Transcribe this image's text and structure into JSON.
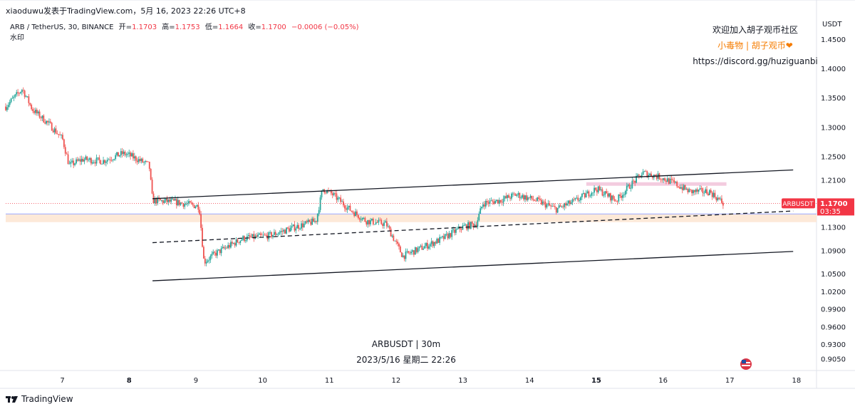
{
  "header": {
    "publisher_line": "xiaoduwu发表于TradingView.com，5月 16, 2023 22:26 UTC+8",
    "symbol_desc": "ARB / TetherUS, 30, BINANCE",
    "ohlc": {
      "open_label": "开=",
      "open": "1.1703",
      "high_label": "高=",
      "high": "1.1753",
      "low_label": "低=",
      "low": "1.1664",
      "close_label": "收=",
      "close": "1.1700",
      "change": "−0.0006 (−0.05%)"
    },
    "watermark_label": "水印"
  },
  "notes": {
    "line1": "欢迎加入胡子观币社区",
    "line2": "小毒物 | 胡子观币❤",
    "line3": "https://discord.gg/huziguanbi"
  },
  "center_watermark": {
    "line1": "ARBUSDT | 30m",
    "line2": "2023/5/16 星期二 22:26"
  },
  "footer": {
    "brand": "TradingView"
  },
  "colors": {
    "up": "#26a69a",
    "down": "#ef5350",
    "channel": "#131722",
    "price_badge": "#f23645",
    "zone": "#fde7d4",
    "zone_line": "#9aa7ff",
    "resistance_bar": "#f2c6dc",
    "grid": "#f0f3fa"
  },
  "chart_data": {
    "type": "candlestick",
    "symbol": "ARBUSDT",
    "interval": "30m",
    "currency_label": "USDT",
    "ylim": [
      0.885,
      1.49
    ],
    "xlim": [
      6.15,
      18.3
    ],
    "y_ticks": [
      "1.4500",
      "1.4000",
      "1.3500",
      "1.3000",
      "1.2500",
      "1.2100",
      "1.1700",
      "1.1300",
      "1.0900",
      "1.0500",
      "1.0200",
      "0.9900",
      "0.9600",
      "0.9300",
      "0.9050"
    ],
    "y_tick_values": [
      1.45,
      1.4,
      1.35,
      1.3,
      1.25,
      1.21,
      1.17,
      1.13,
      1.09,
      1.05,
      1.02,
      0.99,
      0.96,
      0.93,
      0.905
    ],
    "x_ticks": [
      {
        "label": "7",
        "x": 7,
        "bold": false
      },
      {
        "label": "8",
        "x": 8,
        "bold": true
      },
      {
        "label": "9",
        "x": 9,
        "bold": false
      },
      {
        "label": "10",
        "x": 10,
        "bold": false
      },
      {
        "label": "11",
        "x": 11,
        "bold": false
      },
      {
        "label": "12",
        "x": 12,
        "bold": false
      },
      {
        "label": "13",
        "x": 13,
        "bold": false
      },
      {
        "label": "14",
        "x": 14,
        "bold": false
      },
      {
        "label": "15",
        "x": 15,
        "bold": true
      },
      {
        "label": "16",
        "x": 16,
        "bold": false
      },
      {
        "label": "17",
        "x": 17,
        "bold": false
      },
      {
        "label": "18",
        "x": 18,
        "bold": false
      }
    ],
    "price_line": {
      "value": 1.17,
      "label": "ARBUSDT",
      "price": "1.1700",
      "countdown": "03:35"
    },
    "price_path": [
      [
        6.15,
        1.335
      ],
      [
        6.4,
        1.365
      ],
      [
        6.55,
        1.33
      ],
      [
        6.8,
        1.305
      ],
      [
        7.0,
        1.28
      ],
      [
        7.1,
        1.235
      ],
      [
        7.3,
        1.245
      ],
      [
        7.6,
        1.242
      ],
      [
        7.9,
        1.255
      ],
      [
        8.0,
        1.252
      ],
      [
        8.3,
        1.235
      ],
      [
        8.35,
        1.175
      ],
      [
        8.7,
        1.172
      ],
      [
        9.05,
        1.165
      ],
      [
        9.12,
        1.07
      ],
      [
        9.3,
        1.085
      ],
      [
        9.7,
        1.11
      ],
      [
        10.1,
        1.115
      ],
      [
        10.5,
        1.13
      ],
      [
        10.8,
        1.14
      ],
      [
        10.9,
        1.195
      ],
      [
        11.05,
        1.185
      ],
      [
        11.3,
        1.16
      ],
      [
        11.55,
        1.14
      ],
      [
        11.85,
        1.135
      ],
      [
        12.1,
        1.08
      ],
      [
        12.4,
        1.095
      ],
      [
        12.7,
        1.11
      ],
      [
        13.0,
        1.13
      ],
      [
        13.2,
        1.135
      ],
      [
        13.3,
        1.17
      ],
      [
        13.55,
        1.175
      ],
      [
        13.8,
        1.185
      ],
      [
        14.1,
        1.175
      ],
      [
        14.4,
        1.16
      ],
      [
        14.7,
        1.175
      ],
      [
        15.0,
        1.195
      ],
      [
        15.3,
        1.175
      ],
      [
        15.5,
        1.2
      ],
      [
        15.7,
        1.222
      ],
      [
        15.95,
        1.215
      ],
      [
        16.15,
        1.205
      ],
      [
        16.4,
        1.19
      ],
      [
        16.7,
        1.19
      ],
      [
        16.9,
        1.17
      ]
    ],
    "lines": [
      {
        "name": "channel-upper",
        "style": "solid",
        "points": [
          [
            8.35,
            1.178
          ],
          [
            17.95,
            1.227
          ]
        ]
      },
      {
        "name": "channel-lower",
        "style": "solid",
        "points": [
          [
            8.35,
            1.038
          ],
          [
            17.95,
            1.088
          ]
        ]
      },
      {
        "name": "channel-mid",
        "style": "dashed",
        "points": [
          [
            8.35,
            1.103
          ],
          [
            17.95,
            1.157
          ]
        ]
      }
    ],
    "zones": [
      {
        "name": "support-zone",
        "y0": 1.138,
        "y1": 1.152,
        "x0": 6.15,
        "x1": 18.3
      },
      {
        "name": "resistance-bar",
        "y0": 1.2,
        "y1": 1.206,
        "x0": 14.85,
        "x1": 16.95
      }
    ]
  }
}
